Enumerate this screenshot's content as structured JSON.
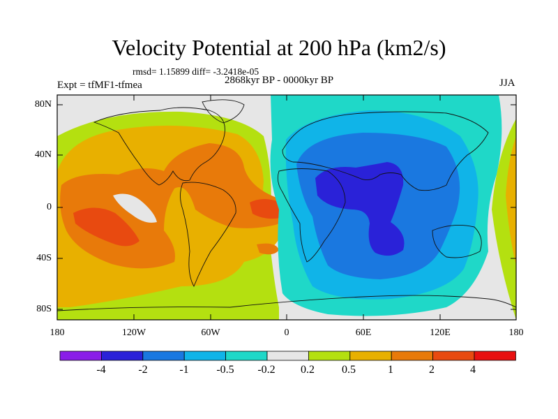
{
  "title": "Velocity Potential at 200 hPa (km2/s)",
  "stats": "rmsd= 1.15899 diff= -3.2418e-05",
  "period": "2868kyr BP - 0000kyr BP",
  "experiment": "Expt = tfMF1-tfmea",
  "season": "JJA",
  "axes": {
    "y_ticks": [
      "80N",
      "40N",
      "0",
      "40S",
      "80S"
    ],
    "x_ticks": [
      "180",
      "120W",
      "60W",
      "0",
      "60E",
      "120E",
      "180"
    ]
  },
  "colorbar": {
    "labels": [
      "-4",
      "-2",
      "-1",
      "-0.5",
      "-0.2",
      "0.2",
      "0.5",
      "1",
      "2",
      "4"
    ],
    "colors": [
      "#8a1ee8",
      "#2a22d8",
      "#1a78e0",
      "#10b4e8",
      "#1fd8c8",
      "#e6e6e6",
      "#b4e010",
      "#e8b000",
      "#e87a0a",
      "#e84a10",
      "#e81010"
    ]
  }
}
